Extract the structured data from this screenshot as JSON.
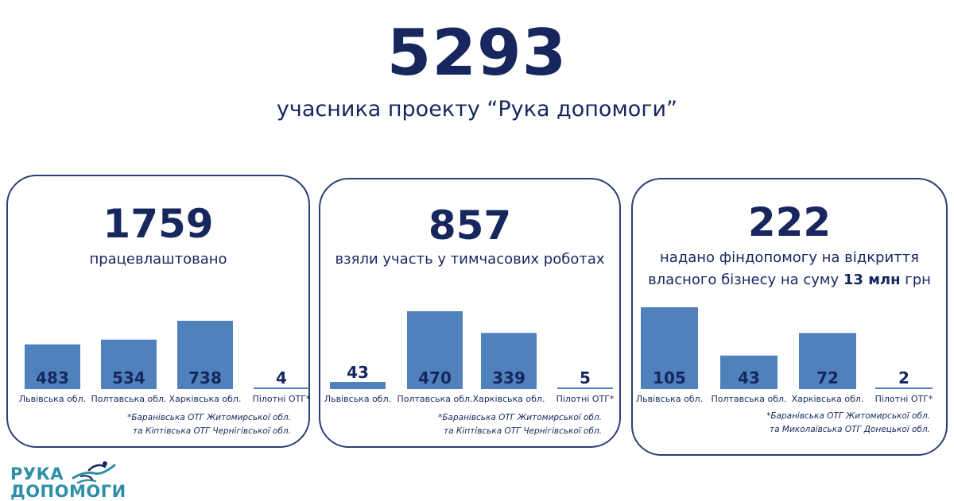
{
  "headline": {
    "number": "5293",
    "caption": "учасника проекту “Рука допомоги”"
  },
  "cards": [
    {
      "number": "1759",
      "caption_parts": [
        "працевлаштовано"
      ],
      "footnote_lines": [
        "*Баранівська ОТГ Житомирської обл.",
        "та Кіптівська ОТГ Чернігівської обл."
      ]
    },
    {
      "number": "857",
      "caption_parts": [
        "взяли участь у тимчасових роботах"
      ],
      "footnote_lines": [
        "*Баранівська ОТГ Житомирської обл.",
        "та Кіптівська ОТГ Чернігівської обл."
      ]
    },
    {
      "number": "222",
      "caption_line1": "надано фіндопомогу на відкриття",
      "caption_line2_pre": "власного бізнесу на суму ",
      "caption_line2_bold": "13 млн",
      "caption_line2_post": " грн",
      "footnote_lines": [
        "*Баранівська ОТГ Житомирської обл.",
        "та Миколаївська ОТГ Донецької обл."
      ]
    }
  ],
  "chart_data": [
    {
      "type": "bar",
      "categories": [
        "Львівська обл.",
        "Полтавська обл.",
        "Харківська обл.",
        "Пілотні ОТГ*"
      ],
      "values": [
        483,
        534,
        738,
        4
      ],
      "ylim": [
        0,
        738
      ],
      "color": "#4f81bd"
    },
    {
      "type": "bar",
      "categories": [
        "Львівська обл.",
        "Полтавська обл.",
        "Харківська обл.",
        "Пілотні ОТГ*"
      ],
      "values": [
        43,
        470,
        339,
        5
      ],
      "ylim": [
        0,
        470
      ],
      "color": "#4f81bd"
    },
    {
      "type": "bar",
      "categories": [
        "Львівська обл.",
        "Полтавська обл.",
        "Харківська обл.",
        "Пілотні ОТГ*"
      ],
      "values": [
        105,
        43,
        72,
        2
      ],
      "ylim": [
        0,
        105
      ],
      "color": "#4f81bd"
    }
  ],
  "logo": {
    "line1": "РУКА",
    "line2": "ДОПОМОГИ",
    "icon": "handshake-icon"
  },
  "colors": {
    "text": "#17275e",
    "bar": "#4f81bd",
    "logo": "#2f8fa6"
  }
}
